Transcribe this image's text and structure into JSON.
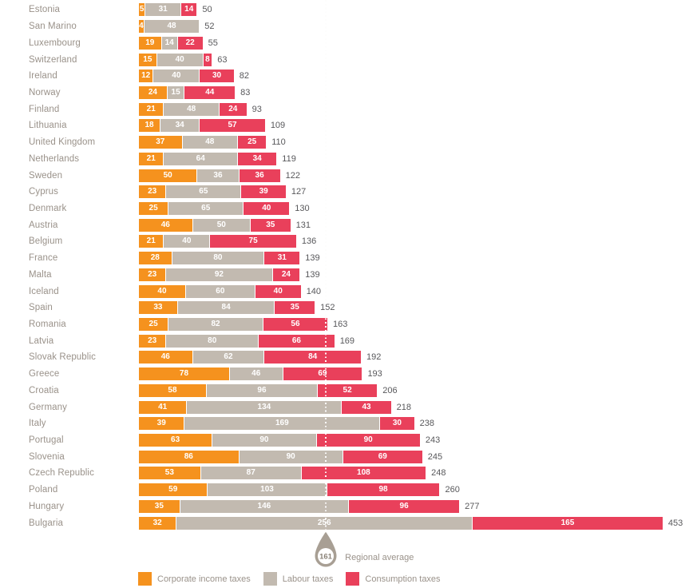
{
  "chart_data": {
    "type": "bar",
    "orientation": "horizontal",
    "stacked": true,
    "grid": false,
    "legend_position": "bottom",
    "xlim": [
      0,
      465
    ],
    "categories": [
      "Estonia",
      "San Marino",
      "Luxembourg",
      "Switzerland",
      "Ireland",
      "Norway",
      "Finland",
      "Lithuania",
      "United Kingdom",
      "Netherlands",
      "Sweden",
      "Cyprus",
      "Denmark",
      "Austria",
      "Belgium",
      "France",
      "Malta",
      "Iceland",
      "Spain",
      "Romania",
      "Latvia",
      "Slovak Republic",
      "Greece",
      "Croatia",
      "Germany",
      "Italy",
      "Portugal",
      "Slovenia",
      "Czech Republic",
      "Poland",
      "Hungary",
      "Bulgaria"
    ],
    "series": [
      {
        "name": "Corporate income taxes",
        "color": "#f5921e",
        "values": [
          5,
          4,
          19,
          15,
          12,
          24,
          21,
          18,
          37,
          21,
          50,
          23,
          25,
          46,
          21,
          28,
          23,
          40,
          33,
          25,
          23,
          46,
          78,
          58,
          41,
          39,
          63,
          86,
          53,
          59,
          35,
          32
        ]
      },
      {
        "name": "Labour taxes",
        "color": "#c2bab0",
        "values": [
          31,
          48,
          14,
          40,
          40,
          15,
          48,
          34,
          48,
          64,
          36,
          65,
          65,
          50,
          40,
          80,
          92,
          60,
          84,
          82,
          80,
          62,
          46,
          96,
          134,
          169,
          90,
          90,
          87,
          103,
          146,
          256
        ]
      },
      {
        "name": "Consumption taxes",
        "color": "#e9405b",
        "values": [
          14,
          0,
          22,
          8,
          30,
          44,
          24,
          57,
          25,
          34,
          36,
          39,
          40,
          35,
          75,
          31,
          24,
          40,
          35,
          56,
          66,
          84,
          69,
          52,
          43,
          30,
          90,
          69,
          108,
          98,
          96,
          165
        ]
      }
    ],
    "totals": [
      50,
      52,
      55,
      63,
      82,
      83,
      93,
      109,
      110,
      119,
      122,
      127,
      130,
      131,
      136,
      139,
      139,
      140,
      152,
      163,
      169,
      192,
      193,
      206,
      218,
      238,
      243,
      245,
      248,
      260,
      277,
      453
    ],
    "regional_average": {
      "value": 161,
      "label": "Regional average"
    }
  },
  "colors": {
    "corporate": "#f5921e",
    "labour": "#c2bab0",
    "consumption": "#e9405b",
    "average_marker": "#a89f94",
    "average_value_text": "#8a8277",
    "country_label": "#9a928a",
    "total_label": "#58585b",
    "dotted_line": "#d8d3cd"
  }
}
